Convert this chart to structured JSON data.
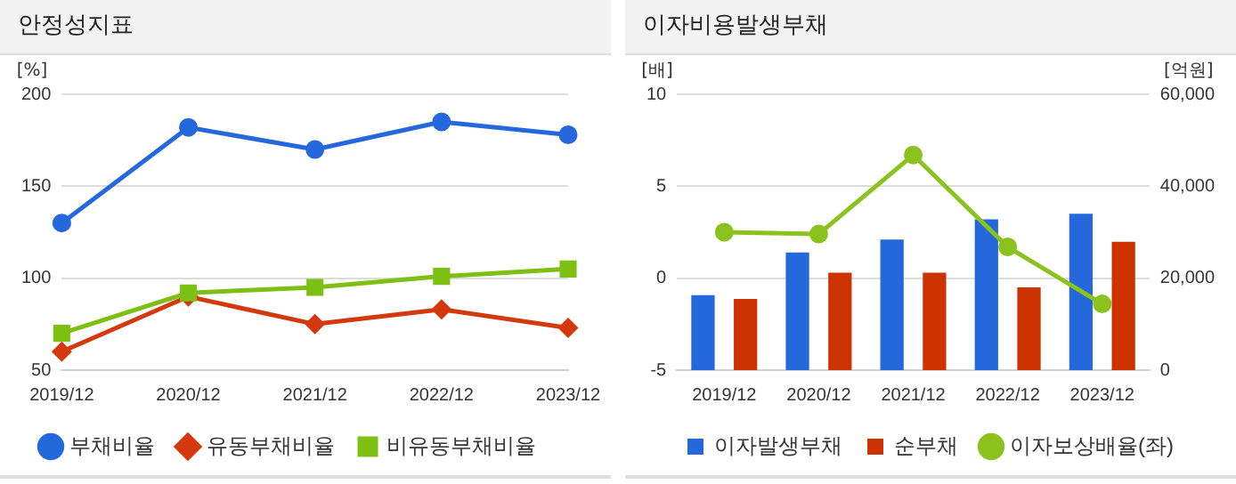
{
  "chart_data": [
    {
      "type": "line",
      "title": "안정성지표",
      "ylabel": "[%]",
      "categories": [
        "2019/12",
        "2020/12",
        "2021/12",
        "2022/12",
        "2023/12"
      ],
      "series": [
        {
          "name": "부채비율",
          "color": "#2468dc",
          "marker": "circle",
          "values": [
            130,
            182,
            170,
            185,
            178
          ]
        },
        {
          "name": "유동부채비율",
          "color": "#d4380d",
          "marker": "diamond",
          "values": [
            60,
            90,
            75,
            83,
            73
          ]
        },
        {
          "name": "비유동부채비율",
          "color": "#7dbf12",
          "marker": "square",
          "values": [
            70,
            92,
            95,
            101,
            105
          ]
        }
      ],
      "ylim": [
        50,
        200
      ],
      "yticks": [
        50,
        100,
        150,
        200
      ],
      "grid": "y",
      "legend": "bottom",
      "line_style": "solid"
    },
    {
      "type": "bar",
      "title": "이자비용발생부채",
      "ylabel": "[배]",
      "y2label": "[억원]",
      "categories": [
        "2019/12",
        "2020/12",
        "2021/12",
        "2022/12",
        "2023/12"
      ],
      "series": [
        {
          "name": "이자발생부채",
          "type": "bar",
          "axis": "y2",
          "color": "#2468dc",
          "values": [
            16300,
            25600,
            28400,
            32800,
            34000
          ]
        },
        {
          "name": "순부채",
          "type": "bar",
          "axis": "y2",
          "color": "#cc3300",
          "values": [
            15500,
            21200,
            21200,
            18000,
            27900
          ]
        },
        {
          "name": "이자보상배율(좌)",
          "type": "line",
          "axis": "y",
          "color": "#8cc21e",
          "marker": "circle",
          "values": [
            2.5,
            2.4,
            6.7,
            1.7,
            -1.4
          ]
        }
      ],
      "ylim": [
        -5,
        10
      ],
      "yticks": [
        -5,
        0,
        5,
        10
      ],
      "y2lim": [
        0,
        60000
      ],
      "y2ticks": [
        0,
        {
          "value": 20000,
          "label": "20,000"
        },
        {
          "value": 40000,
          "label": "40,000"
        },
        {
          "value": 60000,
          "label": "60,000"
        }
      ],
      "grid": "y",
      "legend": "bottom",
      "line_style": "solid"
    }
  ]
}
